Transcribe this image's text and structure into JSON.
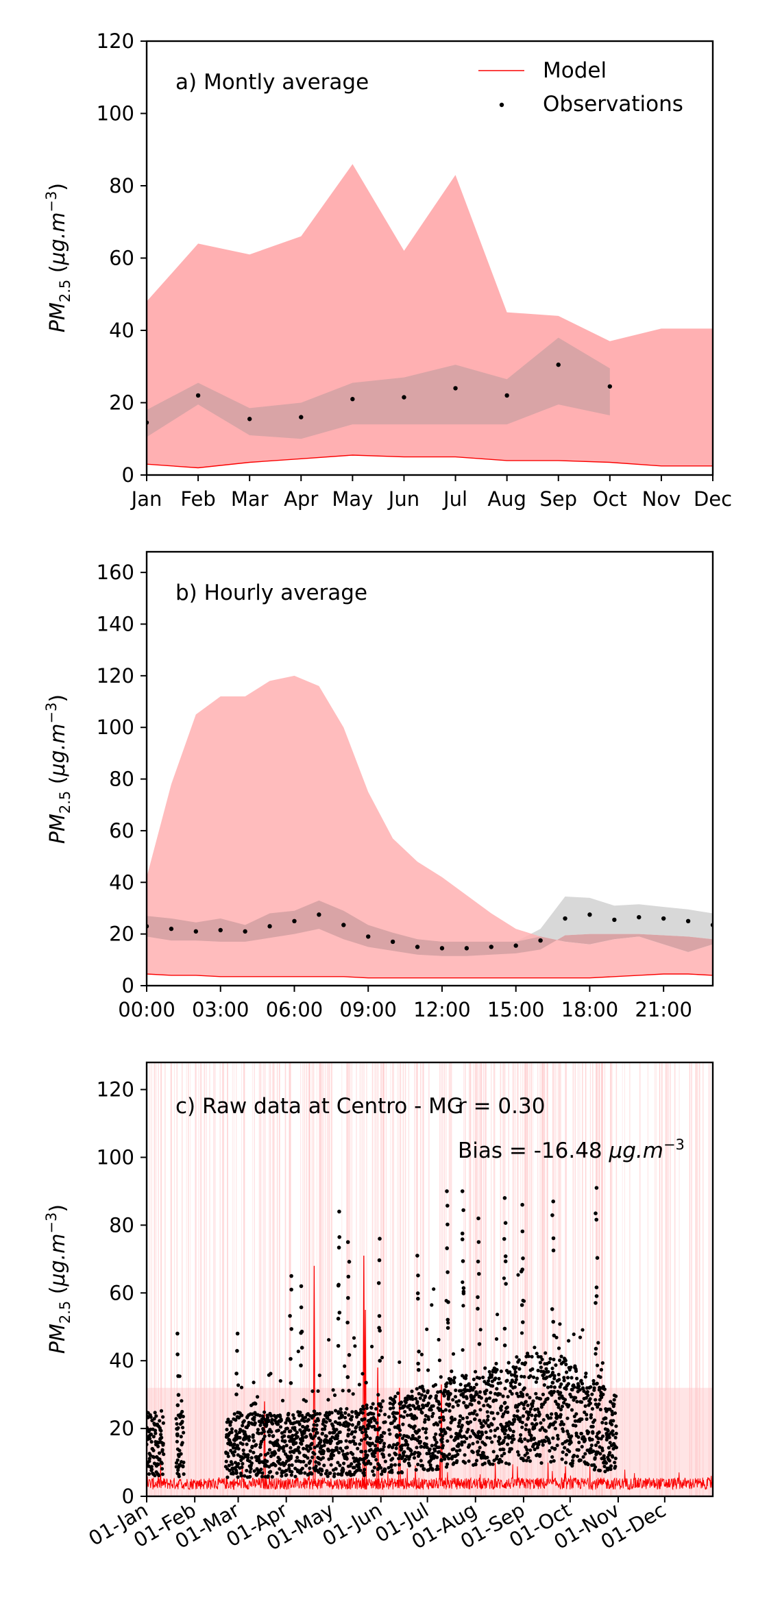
{
  "figure": {
    "legend": {
      "model_label": "Model",
      "obs_label": "Observations"
    },
    "colors": {
      "model": "#fa0000",
      "model_band": "#ffb0b2",
      "obs": "#000000",
      "obs_band": "#d8d8d8",
      "overlap": "#d9a4a6"
    }
  },
  "chart_data": [
    {
      "id": "monthly",
      "type": "area",
      "annotation": "a) Montly average",
      "ylabel": "PM_{2.5} (μg.m^{-3})",
      "ylim": [
        0,
        120
      ],
      "yticks": [
        "0",
        "20",
        "40",
        "60",
        "80",
        "100",
        "120"
      ],
      "categories": [
        "Jan",
        "Feb",
        "Mar",
        "Apr",
        "May",
        "Jun",
        "Jul",
        "Aug",
        "Sep",
        "Oct",
        "Nov",
        "Dec"
      ],
      "legend_position": "top-right",
      "model_upper": [
        48,
        64,
        61,
        66,
        86,
        62,
        83,
        45,
        44,
        37,
        40.5,
        40.5
      ],
      "model_lower": [
        3,
        2,
        3.5,
        4.5,
        5.5,
        5,
        5,
        4,
        4,
        3.5,
        2.5,
        2.5
      ],
      "obs_mean": [
        14.5,
        22,
        15.5,
        16,
        21,
        21.5,
        24,
        22,
        30.5,
        24.5,
        null,
        null
      ],
      "obs_upper": [
        18,
        25.5,
        18.5,
        20,
        25.5,
        27,
        30.5,
        26.5,
        38,
        29.5,
        null,
        null
      ],
      "obs_lower": [
        10.5,
        19.5,
        11,
        10,
        14,
        14,
        14,
        14,
        19.5,
        16.5,
        null,
        null
      ]
    },
    {
      "id": "hourly",
      "type": "area",
      "annotation": "b) Hourly average",
      "ylabel": "PM_{2.5} (μg.m^{-3})",
      "ylim": [
        0,
        168
      ],
      "yticks": [
        "0",
        "20",
        "40",
        "60",
        "80",
        "100",
        "120",
        "140",
        "160"
      ],
      "xticks": [
        "00:00",
        "03:00",
        "06:00",
        "09:00",
        "12:00",
        "15:00",
        "18:00",
        "21:00"
      ],
      "hours": [
        0,
        1,
        2,
        3,
        4,
        5,
        6,
        7,
        8,
        9,
        10,
        11,
        12,
        13,
        14,
        15,
        16,
        17,
        18,
        19,
        20,
        21,
        22,
        23
      ],
      "model_upper": [
        42,
        78,
        105,
        112,
        112,
        118,
        120,
        116,
        100,
        75,
        57,
        48,
        42,
        35,
        28,
        22,
        19,
        17,
        16,
        18,
        19,
        16,
        13,
        16
      ],
      "model_lower": [
        4.5,
        4,
        4,
        3.5,
        3.5,
        3.5,
        3.5,
        3.5,
        3.5,
        3,
        3,
        3,
        3,
        3,
        3,
        3,
        3,
        3,
        3,
        3.5,
        4,
        4.5,
        4.5,
        4
      ],
      "obs_mean": [
        23,
        22,
        21,
        21.5,
        21,
        23,
        25,
        27.5,
        23.5,
        19,
        17,
        15,
        14.5,
        14.5,
        15,
        15.5,
        17.5,
        26,
        27.5,
        25.5,
        26.5,
        26,
        25,
        23.5
      ],
      "obs_upper": [
        27,
        26,
        24.5,
        26,
        23.5,
        28,
        29,
        33,
        29,
        23.5,
        20.5,
        18,
        17,
        17,
        17,
        17,
        22,
        34.5,
        34,
        31,
        31.5,
        30.5,
        29.5,
        28
      ],
      "obs_lower": [
        19,
        17.5,
        17.5,
        17,
        17,
        18.5,
        20,
        22,
        18,
        15,
        13.5,
        12,
        11.5,
        11.5,
        12,
        12.5,
        14,
        19.5,
        20,
        20,
        20,
        19.5,
        19,
        18
      ]
    },
    {
      "id": "raw",
      "type": "scatter",
      "annotation": "c) Raw data at Centro - MG",
      "stat_r": "r = 0.30",
      "stat_bias_prefix": "Bias = -16.48 ",
      "ylabel": "PM_{2.5} (μg.m^{-3})",
      "ylim": [
        0,
        128
      ],
      "yticks": [
        "0",
        "20",
        "40",
        "60",
        "80",
        "100",
        "120"
      ],
      "xticks": [
        "01-Jan",
        "01-Feb",
        "01-Mar",
        "01-Apr",
        "01-May",
        "01-Jun",
        "01-Jul",
        "01-Aug",
        "01-Sep",
        "01-Oct",
        "01-Nov",
        "01-Dec"
      ],
      "x_range_days": [
        0,
        365
      ],
      "model_baseline_mean": 3,
      "obs_windows_days": [
        [
          0,
          11
        ],
        [
          19,
          24
        ],
        [
          51,
          154
        ],
        [
          156,
          303
        ]
      ],
      "obs_peaks": [
        {
          "day": 20,
          "value": 48
        },
        {
          "day": 58,
          "value": 48
        },
        {
          "day": 93,
          "value": 65
        },
        {
          "day": 100,
          "value": 62
        },
        {
          "day": 124,
          "value": 84
        },
        {
          "day": 130,
          "value": 75
        },
        {
          "day": 150,
          "value": 76
        },
        {
          "day": 175,
          "value": 71
        },
        {
          "day": 194,
          "value": 90
        },
        {
          "day": 204,
          "value": 90
        },
        {
          "day": 214,
          "value": 82
        },
        {
          "day": 231,
          "value": 88
        },
        {
          "day": 242,
          "value": 86
        },
        {
          "day": 262,
          "value": 87
        },
        {
          "day": 290,
          "value": 91
        }
      ],
      "model_spikes": [
        {
          "day": 76,
          "value": 28
        },
        {
          "day": 108,
          "value": 68
        },
        {
          "day": 140,
          "value": 71
        },
        {
          "day": 141,
          "value": 55
        },
        {
          "day": 149,
          "value": 38
        },
        {
          "day": 163,
          "value": 32
        },
        {
          "day": 190,
          "value": 33
        }
      ]
    }
  ]
}
